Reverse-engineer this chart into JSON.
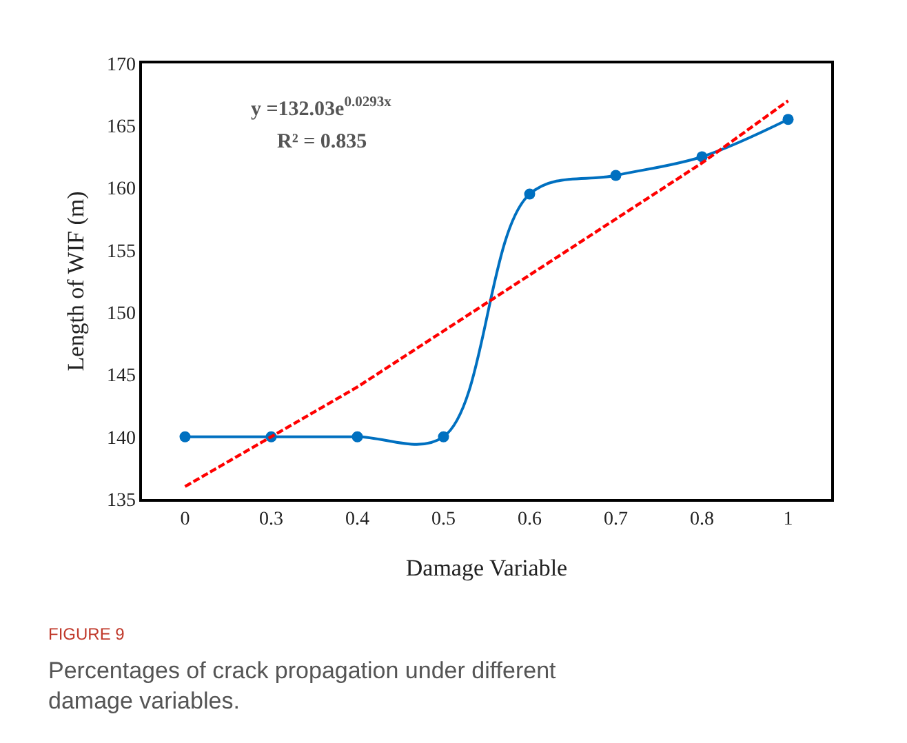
{
  "chart_data": {
    "type": "line",
    "xlabel": "Damage Variable",
    "ylabel": "Length of WIF (m)",
    "categories": [
      "0",
      "0.3",
      "0.4",
      "0.5",
      "0.6",
      "0.7",
      "0.8",
      "1"
    ],
    "series": [
      {
        "color": "#0070c0",
        "values": [
          140,
          140,
          140,
          140,
          159.5,
          161,
          162.5,
          165.5
        ],
        "marker": "circle",
        "line_style": "solid"
      },
      {
        "color": "#ff0000",
        "values": [
          136,
          140,
          144,
          148.5,
          153,
          157.5,
          162,
          167
        ],
        "marker": "none",
        "line_style": "dashed"
      }
    ],
    "ylim": [
      135,
      170
    ],
    "yticks": [
      135,
      140,
      145,
      150,
      155,
      160,
      165,
      170
    ],
    "annotations": [
      "y =132.03e$^{0.0293x}$",
      "R² = 0.835",
      "FIGURE 9",
      "Percentages of crack propagation under different\ndamage variables."
    ]
  }
}
